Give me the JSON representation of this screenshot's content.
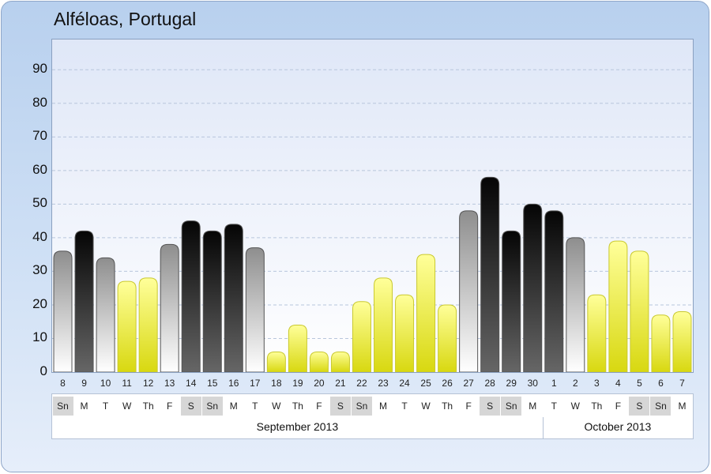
{
  "title": "Alféloas, Portugal",
  "colors": {
    "yellow": "#e8e81a",
    "gray": "#9a9a9a",
    "black": "#111111"
  },
  "chart_data": {
    "type": "bar",
    "title": "Alféloas, Portugal",
    "xlabel": "",
    "ylabel": "",
    "ylim": [
      0,
      99
    ],
    "yticks": [
      0,
      10,
      20,
      30,
      40,
      50,
      60,
      70,
      80,
      90
    ],
    "grid": true,
    "days": [
      "8",
      "9",
      "10",
      "11",
      "12",
      "13",
      "14",
      "15",
      "16",
      "17",
      "18",
      "19",
      "20",
      "21",
      "22",
      "23",
      "24",
      "25",
      "26",
      "27",
      "28",
      "29",
      "30",
      "1",
      "2",
      "3",
      "4",
      "5",
      "6",
      "7"
    ],
    "weekdays": [
      "Sn",
      "M",
      "T",
      "W",
      "Th",
      "F",
      "S",
      "Sn",
      "M",
      "T",
      "W",
      "Th",
      "F",
      "S",
      "Sn",
      "M",
      "T",
      "W",
      "Th",
      "F",
      "S",
      "Sn",
      "M",
      "T",
      "W",
      "Th",
      "F",
      "S",
      "Sn",
      "M"
    ],
    "values": [
      36,
      42,
      34,
      27,
      28,
      38,
      45,
      42,
      44,
      37,
      6,
      14,
      6,
      6,
      21,
      28,
      23,
      35,
      20,
      48,
      58,
      42,
      50,
      48,
      40,
      23,
      39,
      36,
      17,
      18
    ],
    "bar_colors": [
      "gray",
      "black",
      "gray",
      "yellow",
      "yellow",
      "gray",
      "black",
      "black",
      "black",
      "gray",
      "yellow",
      "yellow",
      "yellow",
      "yellow",
      "yellow",
      "yellow",
      "yellow",
      "yellow",
      "yellow",
      "gray",
      "black",
      "black",
      "black",
      "black",
      "gray",
      "yellow",
      "yellow",
      "yellow",
      "yellow",
      "yellow"
    ],
    "months": [
      {
        "label": "September 2013",
        "days": 23
      },
      {
        "label": "October 2013",
        "days": 7
      }
    ]
  }
}
